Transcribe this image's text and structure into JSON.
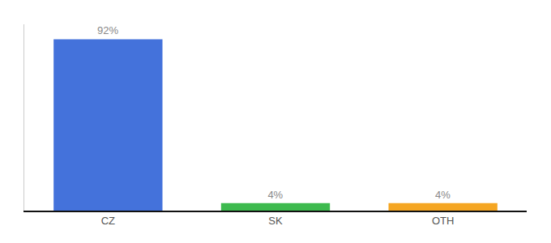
{
  "chart_data": {
    "type": "bar",
    "categories": [
      "CZ",
      "SK",
      "OTH"
    ],
    "values": [
      92,
      4,
      4
    ],
    "value_labels": [
      "92%",
      "4%",
      "4%"
    ],
    "colors": [
      "#4472db",
      "#3dba4e",
      "#f5a623"
    ],
    "ylim": [
      0,
      100
    ],
    "grid": false,
    "data_labels": true,
    "tick_labels": "x"
  }
}
